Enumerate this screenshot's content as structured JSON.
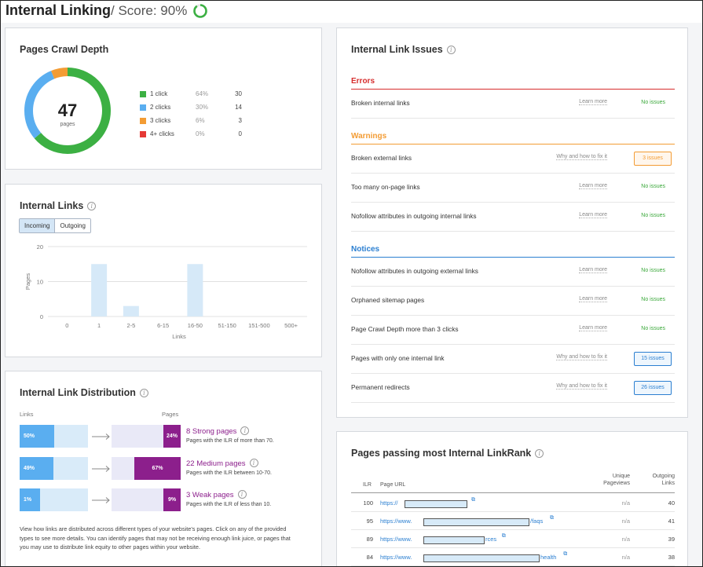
{
  "header": {
    "title": "Internal Linking",
    "score": "/ Score: 90%",
    "score_value": 0.9,
    "score_color": "#3cb043"
  },
  "crawl_depth": {
    "title": "Pages Crawl Depth",
    "total": "47",
    "total_label": "pages",
    "legend": [
      {
        "label": "1 click",
        "pct": "64%",
        "count": "30",
        "color": "#3cb043",
        "value": 30
      },
      {
        "label": "2 clicks",
        "pct": "30%",
        "count": "14",
        "color": "#5aaef0",
        "value": 14
      },
      {
        "label": "3 clicks",
        "pct": "6%",
        "count": "3",
        "color": "#f39c34",
        "value": 3
      },
      {
        "label": "4+ clicks",
        "pct": "0%",
        "count": "0",
        "color": "#e53935",
        "value": 0
      }
    ]
  },
  "internal_links": {
    "title": "Internal Links",
    "tabs": [
      {
        "label": "Incoming",
        "active": true
      },
      {
        "label": "Outgoing",
        "active": false
      }
    ]
  },
  "chart_data": {
    "type": "bar",
    "categories": [
      "0",
      "1",
      "2-5",
      "6-15",
      "16-50",
      "51-150",
      "151-500",
      "500+"
    ],
    "values": [
      0,
      15,
      3,
      0,
      15,
      0,
      0,
      0
    ],
    "xlabel": "Links",
    "ylabel": "Pages",
    "ylim": [
      0,
      20
    ],
    "yticks": [
      0,
      10,
      20
    ],
    "grid": true,
    "color": "#d6e9f8"
  },
  "distribution": {
    "title": "Internal Link Distribution",
    "col_links": "Links",
    "col_pages": "Pages",
    "rows": [
      {
        "links_pct": "50%",
        "links_value": 0.5,
        "pages_pct": "24%",
        "pages_value": 0.24,
        "title": "8 Strong pages",
        "desc": "Pages with the ILR of more than 70."
      },
      {
        "links_pct": "49%",
        "links_value": 0.49,
        "pages_pct": "67%",
        "pages_value": 0.67,
        "title": "22 Medium pages",
        "desc": "Pages with the ILR between 10-70."
      },
      {
        "links_pct": "1%",
        "links_value": 0.01,
        "pages_pct": "9%",
        "pages_value": 0.09,
        "title": "3 Weak pages",
        "desc": "Pages with the ILR of less than 10."
      }
    ],
    "paragraph": "View how links are distributed across different types of your website's pages. Click on any of the provided types to see more details. You can identify pages that may not be receiving enough link juice, or pages that you may use to distribute link equity to other pages within your website."
  },
  "issues": {
    "title": "Internal Link Issues",
    "errors_label": "Errors",
    "warnings_label": "Warnings",
    "notices_label": "Notices",
    "errors": [
      {
        "name": "Broken internal links",
        "link": "Learn more",
        "status": "No issues"
      }
    ],
    "warnings": [
      {
        "name": "Broken external links",
        "link": "Why and how to fix it",
        "badge": "3 issues"
      },
      {
        "name": "Too many on-page links",
        "link": "Learn more",
        "status": "No issues"
      },
      {
        "name": "Nofollow attributes in outgoing internal links",
        "link": "Learn more",
        "status": "No issues"
      }
    ],
    "notices": [
      {
        "name": "Nofollow attributes in outgoing external links",
        "link": "Learn more",
        "status": "No issues"
      },
      {
        "name": "Orphaned sitemap pages",
        "link": "Learn more",
        "status": "No issues"
      },
      {
        "name": "Page Crawl Depth more than 3 clicks",
        "link": "Learn more",
        "status": "No issues"
      },
      {
        "name": "Pages with only one internal link",
        "link": "Why and how to fix it",
        "badge": "15 issues"
      },
      {
        "name": "Permanent redirects",
        "link": "Why and how to fix it",
        "badge": "26 issues"
      }
    ]
  },
  "linkrank": {
    "title": "Pages passing most Internal LinkRank",
    "col_ilr": "ILR",
    "col_url": "Page URL",
    "col_views_1": "Unique",
    "col_views_2": "Pageviews",
    "col_out_1": "Outgoing",
    "col_out_2": "Links",
    "rows": [
      {
        "ilr": "100",
        "url": "https://",
        "suffix": "",
        "views": "n/a",
        "out": "40"
      },
      {
        "ilr": "95",
        "url": "https://www.",
        "suffix": "/faqs",
        "views": "n/a",
        "out": "41"
      },
      {
        "ilr": "89",
        "url": "https://www.",
        "suffix": "rces",
        "views": "n/a",
        "out": "39"
      },
      {
        "ilr": "84",
        "url": "https://www.",
        "suffix": "health",
        "views": "n/a",
        "out": "38"
      }
    ]
  }
}
